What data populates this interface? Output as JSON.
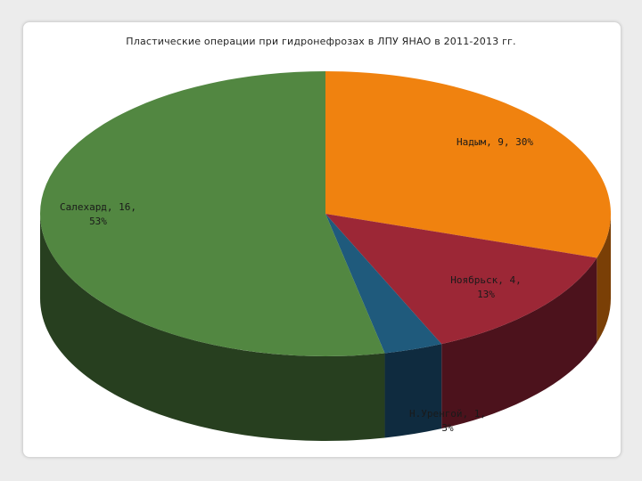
{
  "chart_data": {
    "type": "pie",
    "title": "Пластические операции при гидронефрозах в ЛПУ ЯНАО в 2011-2013 гг.",
    "slices": [
      {
        "label": "Надым",
        "value": 9,
        "percent": "30%",
        "color": "#f0820f",
        "side_color": "#7a3f06",
        "label_lines": [
          "Надым, 9, 30%"
        ]
      },
      {
        "label": "Ноябрьск",
        "value": 4,
        "percent": "13%",
        "color": "#9c2736",
        "side_color": "#4c121c",
        "label_lines": [
          "Ноябрьск, 4,",
          "13%"
        ]
      },
      {
        "label": "Н.Уренгой",
        "value": 1,
        "percent": "3%",
        "color": "#1f5a7c",
        "side_color": "#0f2b3f",
        "label_lines": [
          "Н.Уренгой, 1,",
          "3%"
        ]
      },
      {
        "label": "Салехард",
        "value": 16,
        "percent": "53%",
        "color": "#528741",
        "side_color": "#273f1f",
        "label_lines": [
          "Салехард, 16,",
          "53%"
        ]
      }
    ]
  }
}
